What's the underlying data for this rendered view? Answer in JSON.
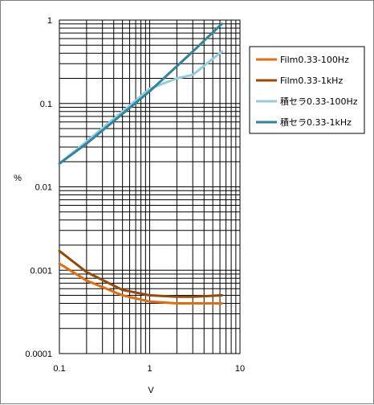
{
  "chart_data": {
    "type": "line",
    "title": "",
    "xlabel": "V",
    "ylabel": "%",
    "x_scale": "log",
    "y_scale": "log",
    "xlim": [
      0.1,
      10
    ],
    "ylim": [
      0.0001,
      1
    ],
    "x_ticks": [
      "0.1",
      "1",
      "10"
    ],
    "y_ticks": [
      "0.0001",
      "0.001",
      "0.01",
      "0.1",
      "1"
    ],
    "grid": true,
    "legend_position": "right",
    "series": [
      {
        "name": "Film0.33-100Hz",
        "color": "#e46c0a",
        "x": [
          0.1,
          0.2,
          0.5,
          1,
          2,
          3,
          6.3
        ],
        "y": [
          0.0012,
          0.00075,
          0.0005,
          0.00042,
          0.0004,
          0.0004,
          0.0004
        ]
      },
      {
        "name": "Film0.33-1kHz",
        "color": "#984807",
        "x": [
          0.1,
          0.2,
          0.5,
          1,
          2,
          3,
          6.3
        ],
        "y": [
          0.0017,
          0.00095,
          0.00058,
          0.0005,
          0.00048,
          0.00048,
          0.0005
        ]
      },
      {
        "name": "積セラ0.33-100Hz",
        "color": "#93cddd",
        "x": [
          0.1,
          0.2,
          0.5,
          1,
          2,
          3,
          6.3
        ],
        "y": [
          0.019,
          0.035,
          0.08,
          0.15,
          0.2,
          0.22,
          0.42
        ]
      },
      {
        "name": "積セラ0.33-1kHz",
        "color": "#31849b",
        "x": [
          0.1,
          0.2,
          0.5,
          1,
          2,
          3,
          6.3
        ],
        "y": [
          0.019,
          0.033,
          0.075,
          0.14,
          0.28,
          0.42,
          0.9
        ]
      }
    ]
  }
}
